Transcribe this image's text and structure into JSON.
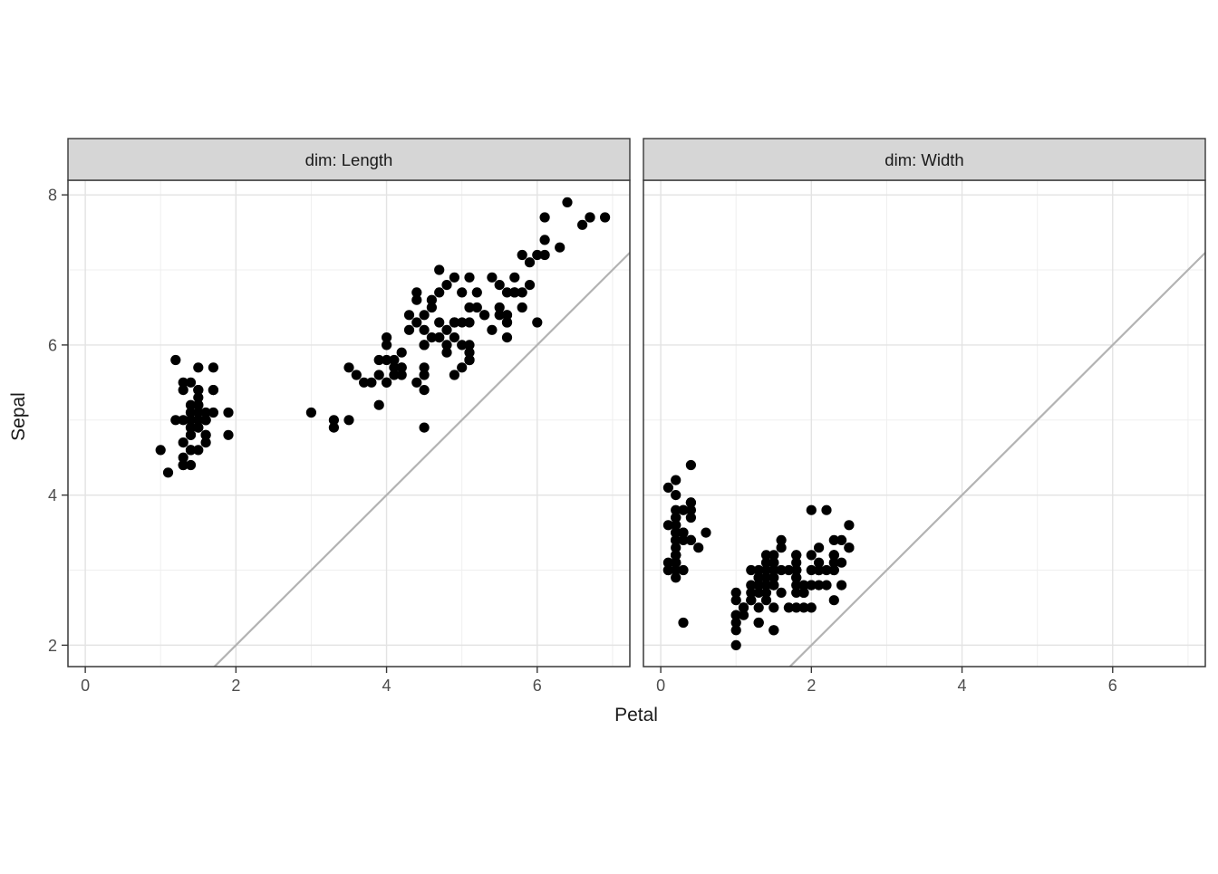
{
  "figure": {
    "background": "#ffffff",
    "legend": "none",
    "title": ""
  },
  "colors": {
    "point": "#000000",
    "reference_line": "#b3b3b3",
    "strip_fill": "#d6d6d6",
    "strip_text": "#1a1a1a",
    "panel_border": "#383838",
    "panel_background": "#ffffff",
    "grid_major": "#e3e3e3",
    "grid_minor": "#efefef",
    "tick_mark": "#383838",
    "tick_label": "#4d4d4d",
    "axis_title": "#1a1a1a"
  },
  "chart_data": {
    "type": "scatter",
    "xlabel": "Petal",
    "ylabel": "Sepal",
    "x_ticks": [
      0,
      2,
      4,
      6
    ],
    "y_ticks": [
      2,
      4,
      6,
      8
    ],
    "x_minor_ticks": [
      1,
      3,
      5,
      7
    ],
    "y_minor_ticks": [
      3,
      5,
      7
    ],
    "xlim": [
      -0.23,
      7.23
    ],
    "ylim": [
      1.715,
      8.195
    ],
    "grid": true,
    "reference_line": {
      "slope": 1,
      "intercept": 0
    },
    "facets": [
      {
        "label": "dim: Length",
        "points": [
          [
            1.4,
            5.1
          ],
          [
            1.4,
            4.9
          ],
          [
            1.3,
            4.7
          ],
          [
            1.5,
            4.6
          ],
          [
            1.4,
            5.0
          ],
          [
            1.7,
            5.4
          ],
          [
            1.4,
            4.6
          ],
          [
            1.5,
            5.0
          ],
          [
            1.4,
            4.4
          ],
          [
            1.5,
            4.9
          ],
          [
            1.5,
            5.4
          ],
          [
            1.6,
            4.8
          ],
          [
            1.4,
            4.8
          ],
          [
            1.1,
            4.3
          ],
          [
            1.2,
            5.8
          ],
          [
            1.5,
            5.7
          ],
          [
            1.3,
            5.4
          ],
          [
            1.4,
            5.1
          ],
          [
            1.7,
            5.7
          ],
          [
            1.5,
            5.1
          ],
          [
            1.7,
            5.4
          ],
          [
            1.5,
            5.1
          ],
          [
            1.0,
            4.6
          ],
          [
            1.7,
            5.1
          ],
          [
            1.9,
            4.8
          ],
          [
            1.6,
            5.0
          ],
          [
            1.6,
            5.0
          ],
          [
            1.5,
            5.2
          ],
          [
            1.4,
            5.2
          ],
          [
            1.6,
            4.7
          ],
          [
            1.6,
            4.8
          ],
          [
            1.5,
            5.4
          ],
          [
            1.5,
            5.2
          ],
          [
            1.4,
            5.5
          ],
          [
            1.5,
            4.9
          ],
          [
            1.2,
            5.0
          ],
          [
            1.3,
            5.5
          ],
          [
            1.4,
            4.9
          ],
          [
            1.3,
            4.4
          ],
          [
            1.5,
            5.1
          ],
          [
            1.3,
            5.0
          ],
          [
            1.3,
            4.5
          ],
          [
            1.3,
            4.4
          ],
          [
            1.6,
            5.0
          ],
          [
            1.9,
            5.1
          ],
          [
            1.4,
            4.8
          ],
          [
            1.6,
            5.1
          ],
          [
            1.4,
            4.6
          ],
          [
            1.5,
            5.3
          ],
          [
            1.4,
            5.0
          ],
          [
            4.7,
            7.0
          ],
          [
            4.5,
            6.4
          ],
          [
            4.9,
            6.9
          ],
          [
            4.0,
            5.5
          ],
          [
            4.6,
            6.5
          ],
          [
            4.5,
            5.7
          ],
          [
            4.7,
            6.3
          ],
          [
            3.3,
            4.9
          ],
          [
            4.6,
            6.6
          ],
          [
            3.9,
            5.2
          ],
          [
            3.5,
            5.0
          ],
          [
            4.2,
            5.9
          ],
          [
            4.0,
            6.0
          ],
          [
            4.7,
            6.1
          ],
          [
            3.6,
            5.6
          ],
          [
            4.4,
            6.7
          ],
          [
            4.5,
            5.6
          ],
          [
            4.1,
            5.8
          ],
          [
            4.5,
            6.2
          ],
          [
            3.9,
            5.6
          ],
          [
            4.8,
            5.9
          ],
          [
            4.0,
            6.1
          ],
          [
            4.9,
            6.3
          ],
          [
            4.7,
            6.1
          ],
          [
            4.3,
            6.4
          ],
          [
            4.4,
            6.6
          ],
          [
            4.8,
            6.8
          ],
          [
            5.0,
            6.7
          ],
          [
            4.5,
            6.0
          ],
          [
            3.5,
            5.7
          ],
          [
            3.8,
            5.5
          ],
          [
            3.7,
            5.5
          ],
          [
            3.9,
            5.8
          ],
          [
            5.1,
            6.0
          ],
          [
            4.5,
            5.4
          ],
          [
            4.5,
            6.0
          ],
          [
            4.7,
            6.7
          ],
          [
            4.4,
            6.3
          ],
          [
            4.1,
            5.6
          ],
          [
            4.0,
            5.5
          ],
          [
            4.4,
            5.5
          ],
          [
            4.6,
            6.1
          ],
          [
            4.0,
            5.8
          ],
          [
            3.3,
            5.0
          ],
          [
            4.2,
            5.6
          ],
          [
            4.2,
            5.7
          ],
          [
            4.2,
            5.7
          ],
          [
            4.3,
            6.2
          ],
          [
            3.0,
            5.1
          ],
          [
            4.1,
            5.7
          ],
          [
            6.0,
            6.3
          ],
          [
            5.1,
            5.8
          ],
          [
            5.9,
            7.1
          ],
          [
            5.6,
            6.3
          ],
          [
            5.8,
            6.5
          ],
          [
            6.6,
            7.6
          ],
          [
            4.5,
            4.9
          ],
          [
            6.3,
            7.3
          ],
          [
            5.8,
            6.7
          ],
          [
            6.1,
            7.2
          ],
          [
            5.1,
            6.5
          ],
          [
            5.3,
            6.4
          ],
          [
            5.5,
            6.8
          ],
          [
            5.0,
            5.7
          ],
          [
            5.1,
            5.8
          ],
          [
            5.3,
            6.4
          ],
          [
            5.5,
            6.5
          ],
          [
            6.7,
            7.7
          ],
          [
            6.9,
            7.7
          ],
          [
            5.0,
            6.0
          ],
          [
            5.7,
            6.9
          ],
          [
            4.9,
            5.6
          ],
          [
            6.7,
            7.7
          ],
          [
            4.9,
            6.3
          ],
          [
            5.7,
            6.7
          ],
          [
            6.0,
            7.2
          ],
          [
            4.8,
            6.2
          ],
          [
            4.9,
            6.1
          ],
          [
            5.6,
            6.4
          ],
          [
            5.8,
            7.2
          ],
          [
            6.1,
            7.4
          ],
          [
            6.4,
            7.9
          ],
          [
            5.6,
            6.4
          ],
          [
            5.1,
            6.3
          ],
          [
            5.6,
            6.1
          ],
          [
            6.1,
            7.7
          ],
          [
            5.6,
            6.3
          ],
          [
            5.5,
            6.4
          ],
          [
            4.8,
            6.0
          ],
          [
            5.4,
            6.9
          ],
          [
            5.6,
            6.7
          ],
          [
            5.1,
            6.9
          ],
          [
            5.1,
            5.8
          ],
          [
            5.9,
            6.8
          ],
          [
            5.7,
            6.7
          ],
          [
            5.2,
            6.7
          ],
          [
            5.0,
            6.3
          ],
          [
            5.2,
            6.5
          ],
          [
            5.4,
            6.2
          ],
          [
            5.1,
            5.9
          ]
        ]
      },
      {
        "label": "dim: Width",
        "points": [
          [
            0.2,
            3.5
          ],
          [
            0.2,
            3.0
          ],
          [
            0.2,
            3.2
          ],
          [
            0.2,
            3.1
          ],
          [
            0.2,
            3.6
          ],
          [
            0.4,
            3.9
          ],
          [
            0.3,
            3.4
          ],
          [
            0.2,
            3.4
          ],
          [
            0.2,
            2.9
          ],
          [
            0.1,
            3.1
          ],
          [
            0.2,
            3.7
          ],
          [
            0.2,
            3.4
          ],
          [
            0.1,
            3.0
          ],
          [
            0.1,
            3.0
          ],
          [
            0.2,
            4.0
          ],
          [
            0.4,
            4.4
          ],
          [
            0.4,
            3.9
          ],
          [
            0.3,
            3.5
          ],
          [
            0.3,
            3.8
          ],
          [
            0.3,
            3.8
          ],
          [
            0.2,
            3.4
          ],
          [
            0.4,
            3.7
          ],
          [
            0.2,
            3.6
          ],
          [
            0.5,
            3.3
          ],
          [
            0.2,
            3.4
          ],
          [
            0.2,
            3.0
          ],
          [
            0.4,
            3.4
          ],
          [
            0.2,
            3.5
          ],
          [
            0.2,
            3.4
          ],
          [
            0.2,
            3.2
          ],
          [
            0.2,
            3.1
          ],
          [
            0.4,
            3.4
          ],
          [
            0.1,
            4.1
          ],
          [
            0.2,
            4.2
          ],
          [
            0.2,
            3.1
          ],
          [
            0.2,
            3.2
          ],
          [
            0.2,
            3.5
          ],
          [
            0.1,
            3.6
          ],
          [
            0.2,
            3.0
          ],
          [
            0.2,
            3.4
          ],
          [
            0.3,
            3.5
          ],
          [
            0.3,
            2.3
          ],
          [
            0.2,
            3.2
          ],
          [
            0.6,
            3.5
          ],
          [
            0.4,
            3.8
          ],
          [
            0.3,
            3.0
          ],
          [
            0.2,
            3.8
          ],
          [
            0.2,
            3.2
          ],
          [
            0.2,
            3.7
          ],
          [
            0.2,
            3.3
          ],
          [
            1.4,
            3.2
          ],
          [
            1.5,
            3.2
          ],
          [
            1.5,
            3.1
          ],
          [
            1.3,
            2.3
          ],
          [
            1.5,
            2.8
          ],
          [
            1.3,
            2.8
          ],
          [
            1.6,
            3.3
          ],
          [
            1.0,
            2.4
          ],
          [
            1.3,
            2.9
          ],
          [
            1.4,
            2.7
          ],
          [
            1.0,
            2.0
          ],
          [
            1.5,
            3.0
          ],
          [
            1.0,
            2.2
          ],
          [
            1.4,
            2.9
          ],
          [
            1.3,
            2.9
          ],
          [
            1.4,
            3.1
          ],
          [
            1.5,
            3.0
          ],
          [
            1.0,
            2.7
          ],
          [
            1.5,
            2.2
          ],
          [
            1.1,
            2.5
          ],
          [
            1.8,
            3.2
          ],
          [
            1.3,
            2.8
          ],
          [
            1.5,
            2.5
          ],
          [
            1.2,
            2.8
          ],
          [
            1.3,
            2.9
          ],
          [
            1.4,
            3.0
          ],
          [
            1.4,
            2.8
          ],
          [
            1.7,
            3.0
          ],
          [
            1.5,
            2.9
          ],
          [
            1.0,
            2.6
          ],
          [
            1.1,
            2.4
          ],
          [
            1.0,
            2.4
          ],
          [
            1.2,
            2.7
          ],
          [
            1.6,
            2.7
          ],
          [
            1.5,
            3.0
          ],
          [
            1.6,
            3.4
          ],
          [
            1.5,
            3.1
          ],
          [
            1.3,
            2.3
          ],
          [
            1.3,
            3.0
          ],
          [
            1.3,
            2.5
          ],
          [
            1.2,
            2.6
          ],
          [
            1.4,
            3.0
          ],
          [
            1.2,
            2.6
          ],
          [
            1.0,
            2.3
          ],
          [
            1.3,
            2.7
          ],
          [
            1.2,
            3.0
          ],
          [
            1.3,
            2.9
          ],
          [
            1.3,
            2.9
          ],
          [
            1.1,
            2.5
          ],
          [
            1.3,
            2.8
          ],
          [
            2.5,
            3.3
          ],
          [
            1.9,
            2.7
          ],
          [
            2.1,
            3.0
          ],
          [
            1.8,
            2.9
          ],
          [
            2.2,
            3.0
          ],
          [
            2.1,
            3.0
          ],
          [
            1.7,
            2.5
          ],
          [
            1.8,
            2.9
          ],
          [
            1.8,
            2.5
          ],
          [
            2.5,
            3.6
          ],
          [
            2.0,
            3.2
          ],
          [
            1.9,
            2.7
          ],
          [
            2.1,
            3.0
          ],
          [
            2.0,
            2.5
          ],
          [
            2.4,
            2.8
          ],
          [
            2.3,
            3.2
          ],
          [
            1.8,
            3.0
          ],
          [
            2.2,
            3.8
          ],
          [
            2.3,
            2.6
          ],
          [
            1.5,
            2.2
          ],
          [
            2.3,
            3.2
          ],
          [
            2.0,
            2.8
          ],
          [
            2.0,
            2.8
          ],
          [
            1.8,
            2.7
          ],
          [
            2.1,
            3.3
          ],
          [
            1.8,
            3.2
          ],
          [
            1.8,
            2.8
          ],
          [
            1.8,
            3.0
          ],
          [
            2.1,
            2.8
          ],
          [
            1.6,
            3.0
          ],
          [
            1.9,
            2.8
          ],
          [
            2.0,
            3.8
          ],
          [
            2.2,
            2.8
          ],
          [
            1.5,
            2.8
          ],
          [
            1.4,
            2.6
          ],
          [
            2.3,
            3.0
          ],
          [
            2.4,
            3.4
          ],
          [
            1.8,
            3.1
          ],
          [
            1.8,
            3.0
          ],
          [
            2.1,
            3.1
          ],
          [
            2.4,
            3.1
          ],
          [
            2.3,
            3.1
          ],
          [
            1.9,
            2.7
          ],
          [
            2.3,
            3.2
          ],
          [
            2.5,
            3.3
          ],
          [
            2.3,
            3.0
          ],
          [
            1.9,
            2.5
          ],
          [
            2.0,
            3.0
          ],
          [
            2.3,
            3.4
          ],
          [
            1.8,
            3.0
          ]
        ]
      }
    ]
  }
}
